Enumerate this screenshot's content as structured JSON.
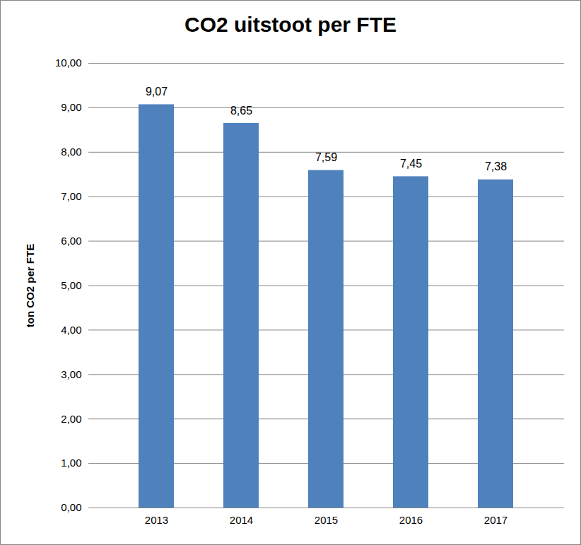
{
  "chart_data": {
    "type": "bar",
    "title": "CO2 uitstoot per FTE",
    "y_label": "ton CO2 per FTE",
    "categories": [
      "2013",
      "2014",
      "2015",
      "2016",
      "2017"
    ],
    "values": [
      9.07,
      8.65,
      7.59,
      7.45,
      7.38
    ],
    "value_labels": [
      "9,07",
      "8,65",
      "7,59",
      "7,45",
      "7,38"
    ],
    "color": "#4f81bd",
    "ylim": [
      0,
      10
    ],
    "yticks": [
      {
        "value": 0,
        "label": "0,00"
      },
      {
        "value": 1,
        "label": "1,00"
      },
      {
        "value": 2,
        "label": "2,00"
      },
      {
        "value": 3,
        "label": "3,00"
      },
      {
        "value": 4,
        "label": "4,00"
      },
      {
        "value": 5,
        "label": "5,00"
      },
      {
        "value": 6,
        "label": "6,00"
      },
      {
        "value": 7,
        "label": "7,00"
      },
      {
        "value": 8,
        "label": "8,00"
      },
      {
        "value": 9,
        "label": "9,00"
      },
      {
        "value": 10,
        "label": "10,00"
      }
    ],
    "grid": true,
    "data_labels": true
  }
}
